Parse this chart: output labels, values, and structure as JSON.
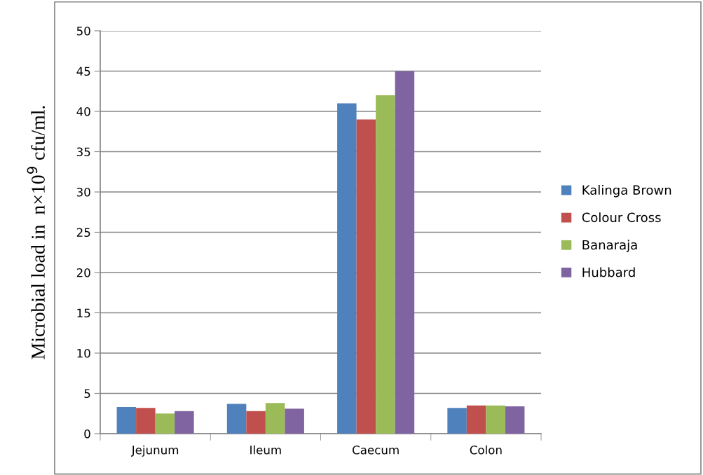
{
  "chart_data": {
    "type": "bar",
    "ylabel": "Microbial load in  n×10$^{9}$ cfu/ml.",
    "categories": [
      "Jejunum",
      "Ileum",
      "Caecum",
      "Colon"
    ],
    "series": [
      {
        "name": "Kalinga Brown",
        "color": "#4f81bd",
        "values": [
          3.3,
          3.7,
          41,
          3.2
        ]
      },
      {
        "name": "Colour Cross",
        "color": "#c0504d",
        "values": [
          3.2,
          2.8,
          39,
          3.5
        ]
      },
      {
        "name": "Banaraja",
        "color": "#9bbb59",
        "values": [
          2.5,
          3.8,
          42,
          3.5
        ]
      },
      {
        "name": "Hubbard",
        "color": "#8064a2",
        "values": [
          2.8,
          3.1,
          45,
          3.4
        ]
      }
    ],
    "ylim": [
      0,
      50
    ],
    "yticks": [
      0,
      5,
      10,
      15,
      20,
      25,
      30,
      35,
      40,
      45,
      50
    ],
    "grid": "y",
    "legend": "right"
  }
}
